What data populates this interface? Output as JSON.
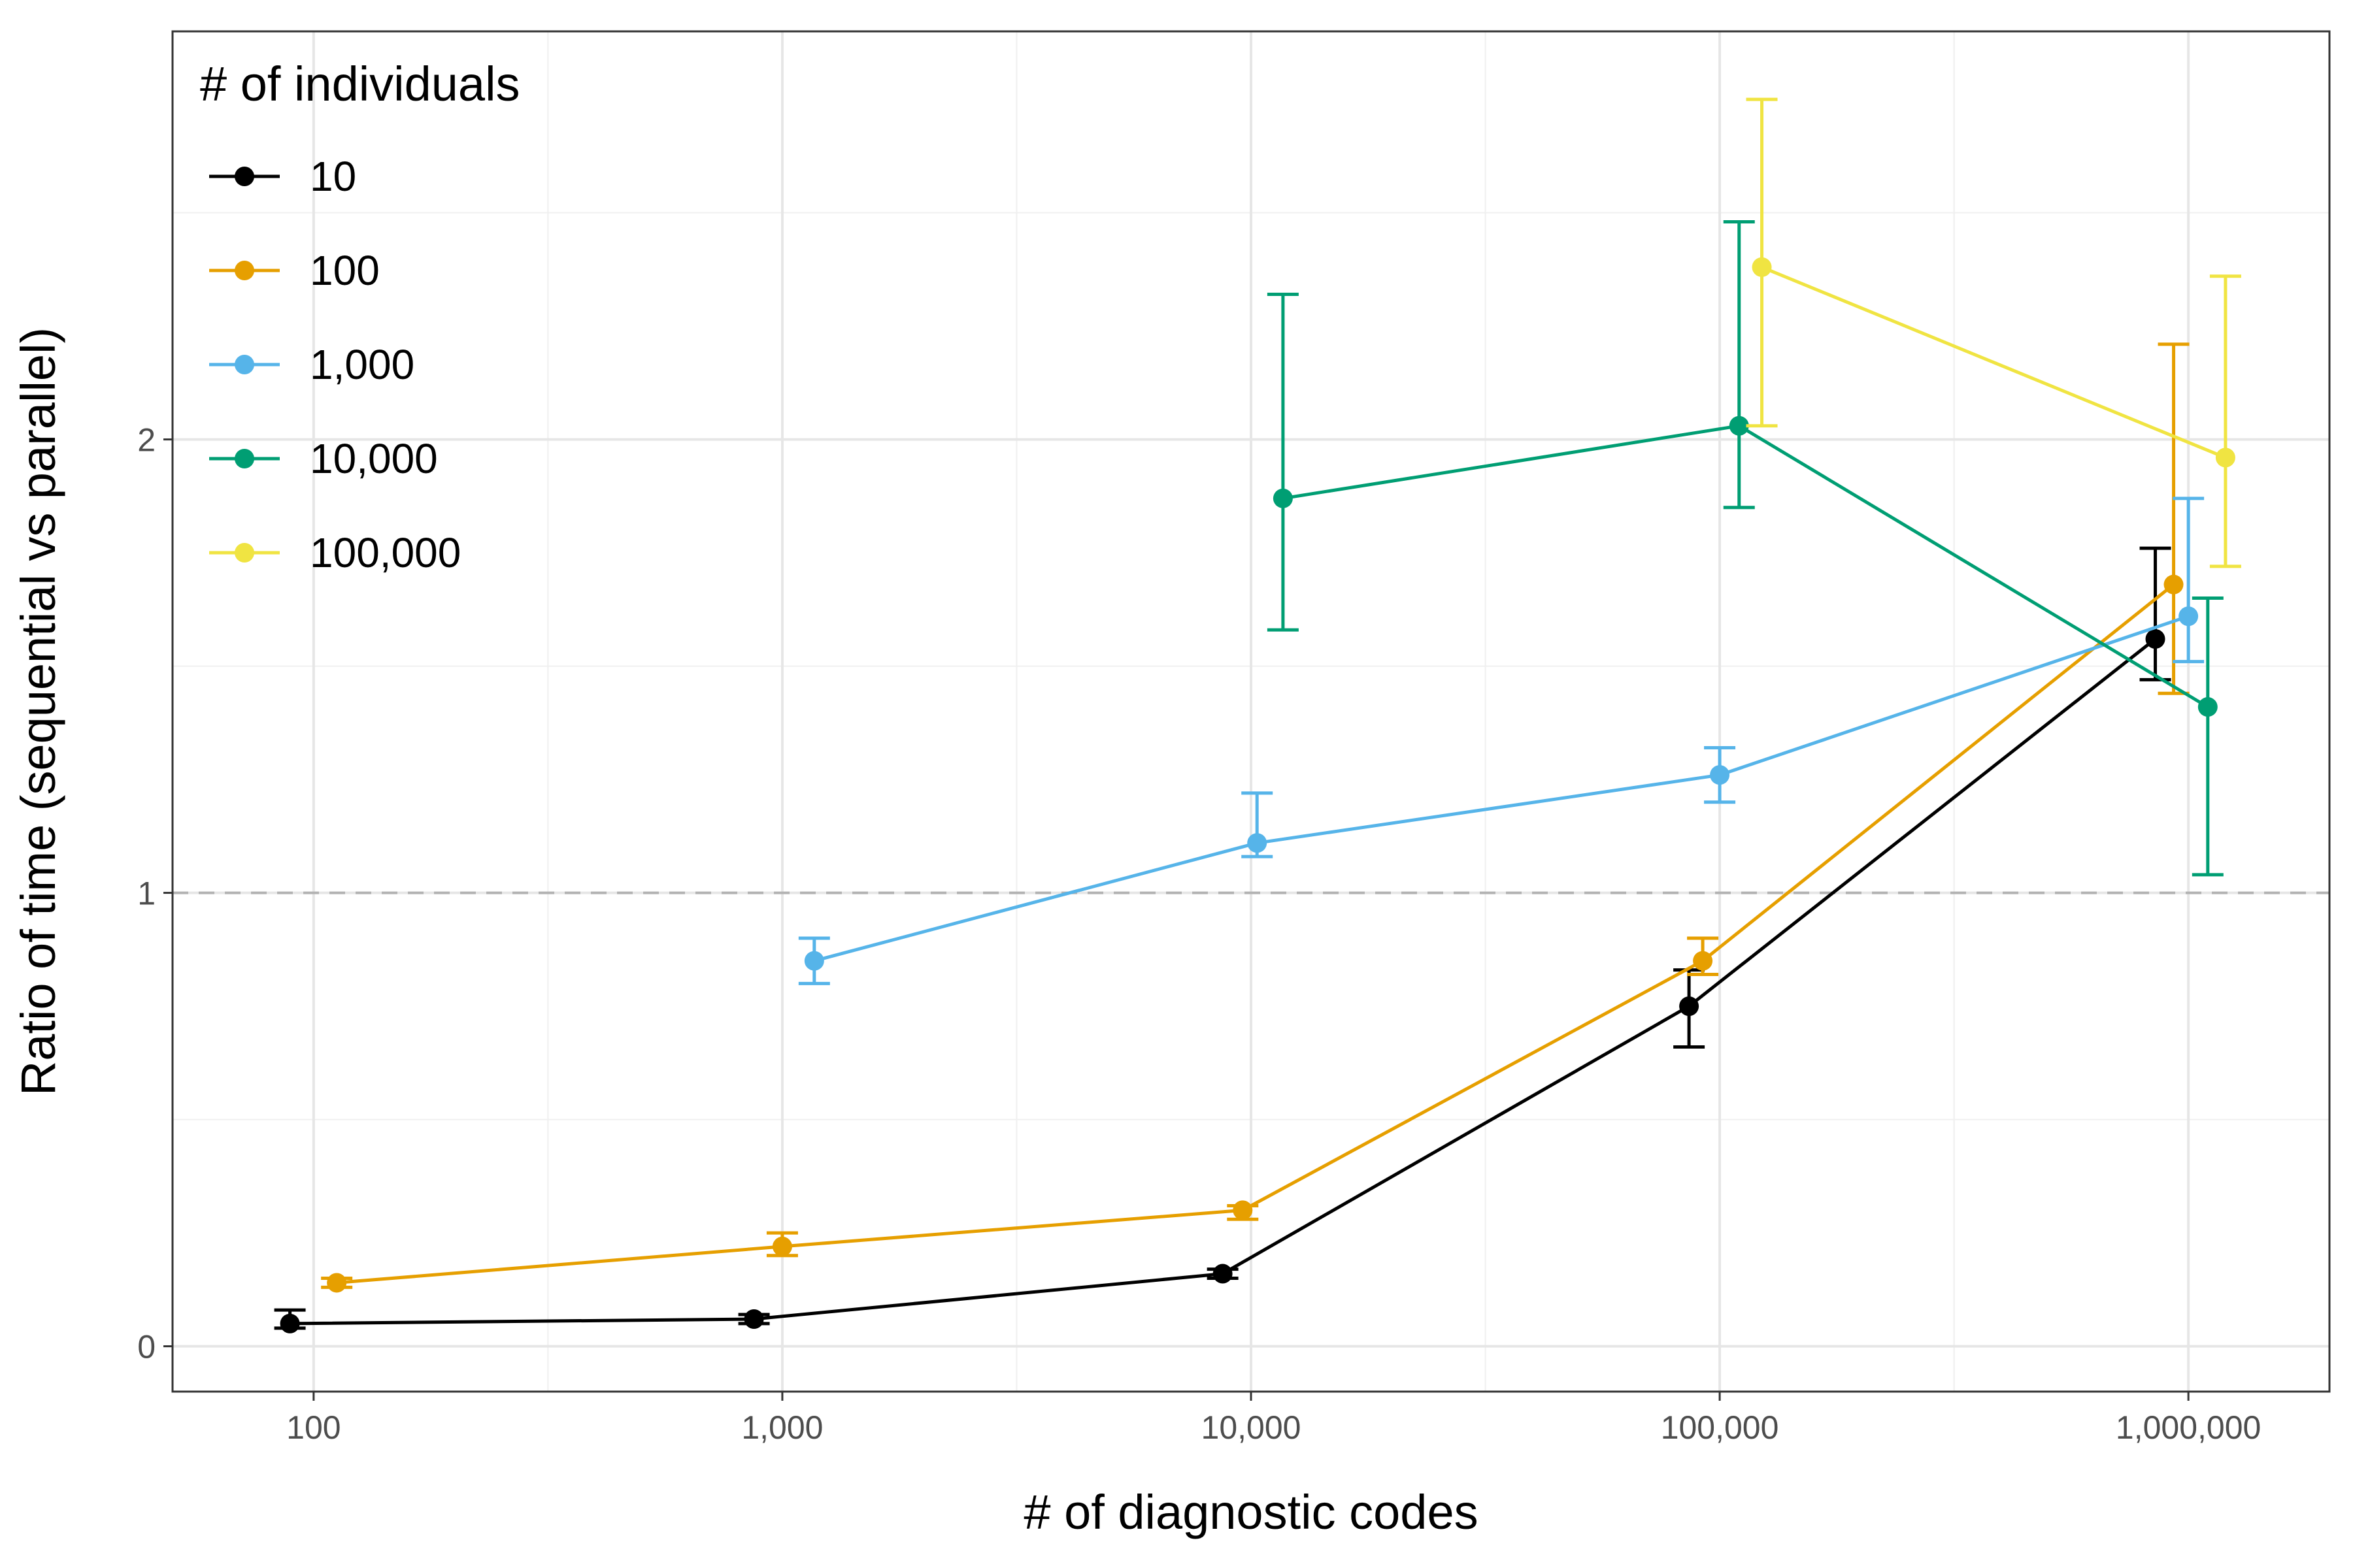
{
  "chart_data": {
    "type": "line",
    "title": "",
    "xlabel": "# of diagnostic codes",
    "ylabel": "Ratio of time (sequential vs parallel)",
    "x_scale": "log10",
    "xlim": [
      50,
      2000000
    ],
    "ylim": [
      -0.1,
      2.9
    ],
    "x_ticks": [
      100,
      1000,
      10000,
      100000,
      1000000
    ],
    "x_tick_labels": [
      "100",
      "1,000",
      "10,000",
      "100,000",
      "1,000,000"
    ],
    "y_ticks": [
      0,
      1,
      2
    ],
    "y_tick_labels": [
      "0",
      "1",
      "2"
    ],
    "grid": true,
    "reference_line": {
      "y": 1,
      "style": "dashed",
      "color": "#b3b3b3"
    },
    "legend": {
      "title": "# of individuals",
      "placement": "top-left"
    },
    "series": [
      {
        "name": "10",
        "color": "#000000",
        "points": [
          {
            "x": 89,
            "y": 0.05,
            "lo": 0.04,
            "hi": 0.08
          },
          {
            "x": 870,
            "y": 0.06,
            "lo": 0.05,
            "hi": 0.07
          },
          {
            "x": 8700,
            "y": 0.16,
            "lo": 0.15,
            "hi": 0.17
          },
          {
            "x": 86000,
            "y": 0.75,
            "lo": 0.66,
            "hi": 0.83
          },
          {
            "x": 850000,
            "y": 1.56,
            "lo": 1.47,
            "hi": 1.76
          }
        ]
      },
      {
        "name": "100",
        "color": "#E69F00",
        "points": [
          {
            "x": 112,
            "y": 0.14,
            "lo": 0.13,
            "hi": 0.15
          },
          {
            "x": 1000,
            "y": 0.22,
            "lo": 0.2,
            "hi": 0.25
          },
          {
            "x": 9600,
            "y": 0.3,
            "lo": 0.28,
            "hi": 0.31
          },
          {
            "x": 92000,
            "y": 0.85,
            "lo": 0.82,
            "hi": 0.9
          },
          {
            "x": 930000,
            "y": 1.68,
            "lo": 1.44,
            "hi": 2.21
          }
        ]
      },
      {
        "name": "1,000",
        "color": "#56B4E9",
        "points": [
          {
            "x": 1170,
            "y": 0.85,
            "lo": 0.8,
            "hi": 0.9
          },
          {
            "x": 10300,
            "y": 1.11,
            "lo": 1.08,
            "hi": 1.22
          },
          {
            "x": 100000,
            "y": 1.26,
            "lo": 1.2,
            "hi": 1.32
          },
          {
            "x": 1000000,
            "y": 1.61,
            "lo": 1.51,
            "hi": 1.87
          }
        ]
      },
      {
        "name": "10,000",
        "color": "#009E73",
        "points": [
          {
            "x": 11700,
            "y": 1.87,
            "lo": 1.58,
            "hi": 2.32
          },
          {
            "x": 110000,
            "y": 2.03,
            "lo": 1.85,
            "hi": 2.48
          },
          {
            "x": 1100000,
            "y": 1.41,
            "lo": 1.04,
            "hi": 1.65
          }
        ]
      },
      {
        "name": "100,000",
        "color": "#F0E442",
        "points": [
          {
            "x": 123000,
            "y": 2.38,
            "lo": 2.03,
            "hi": 2.75
          },
          {
            "x": 1200000,
            "y": 1.96,
            "lo": 1.72,
            "hi": 2.36
          }
        ]
      }
    ]
  }
}
